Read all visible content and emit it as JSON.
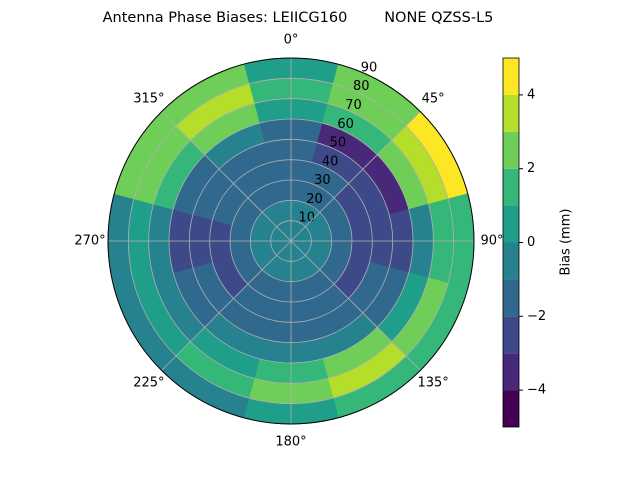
{
  "chart_data": {
    "type": "polar-contour",
    "title": "Antenna Phase Biases: LEIICG160        NONE QZSS-L5",
    "colorbar_label": "Bias (mm)",
    "theta": [
      0,
      30,
      60,
      90,
      120,
      150,
      180,
      210,
      240,
      270,
      300,
      330
    ],
    "r_bins": [
      0,
      10,
      20,
      30,
      40,
      50,
      60,
      70,
      80,
      90
    ],
    "z": [
      [
        -1,
        -1,
        -2,
        -2,
        -2,
        -2,
        0,
        1,
        0
      ],
      [
        -1,
        -1,
        -2,
        -2,
        -3,
        -4,
        1,
        2,
        2
      ],
      [
        -1,
        -1,
        -2,
        -3,
        -3,
        -4,
        2,
        3,
        4
      ],
      [
        -1,
        -1,
        -2,
        -3,
        -3,
        -3,
        -1,
        1,
        1
      ],
      [
        -1,
        -1,
        -2,
        -3,
        -2,
        -2,
        0,
        2,
        1
      ],
      [
        -1,
        -1,
        -2,
        -2,
        -2,
        -1,
        2,
        3,
        1
      ],
      [
        -1,
        -1,
        -2,
        -2,
        -2,
        -1,
        1,
        2,
        0
      ],
      [
        -1,
        -1,
        -2,
        -2,
        -2,
        -1,
        0,
        1,
        -1
      ],
      [
        -1,
        -1,
        -2,
        -3,
        -2,
        -2,
        -1,
        0,
        -1
      ],
      [
        -1,
        -1,
        -2,
        -3,
        -3,
        -3,
        -1,
        0,
        -1
      ],
      [
        -1,
        -1,
        -2,
        -2,
        -2,
        -2,
        1,
        2,
        2
      ],
      [
        -1,
        -1,
        -2,
        -2,
        -2,
        -1,
        2,
        3,
        2
      ]
    ],
    "rlim": [
      0,
      90
    ],
    "rticks": [
      10,
      20,
      30,
      40,
      50,
      60,
      70,
      80,
      90
    ],
    "theta_ticks": [
      {
        "value": 0,
        "label": "0°"
      },
      {
        "value": 45,
        "label": "45°"
      },
      {
        "value": 90,
        "label": "90°"
      },
      {
        "value": 135,
        "label": "135°"
      },
      {
        "value": 180,
        "label": "180°"
      },
      {
        "value": 225,
        "label": "225°"
      },
      {
        "value": 270,
        "label": "270°"
      },
      {
        "value": 315,
        "label": "315°"
      }
    ],
    "levels": [
      -5,
      -4,
      -3,
      -2,
      -1,
      0,
      1,
      2,
      3,
      4,
      5
    ],
    "colors": [
      "#440154",
      "#482878",
      "#3e4989",
      "#31688e",
      "#26828e",
      "#1f9e89",
      "#35b779",
      "#6ece58",
      "#b5de2b",
      "#fde725"
    ],
    "clim": [
      -5,
      5
    ],
    "cticks": [
      {
        "value": -4,
        "label": "−4"
      },
      {
        "value": -2,
        "label": "−2"
      },
      {
        "value": 0,
        "label": "0"
      },
      {
        "value": 2,
        "label": "2"
      },
      {
        "value": 4,
        "label": "4"
      }
    ],
    "grid": true
  }
}
